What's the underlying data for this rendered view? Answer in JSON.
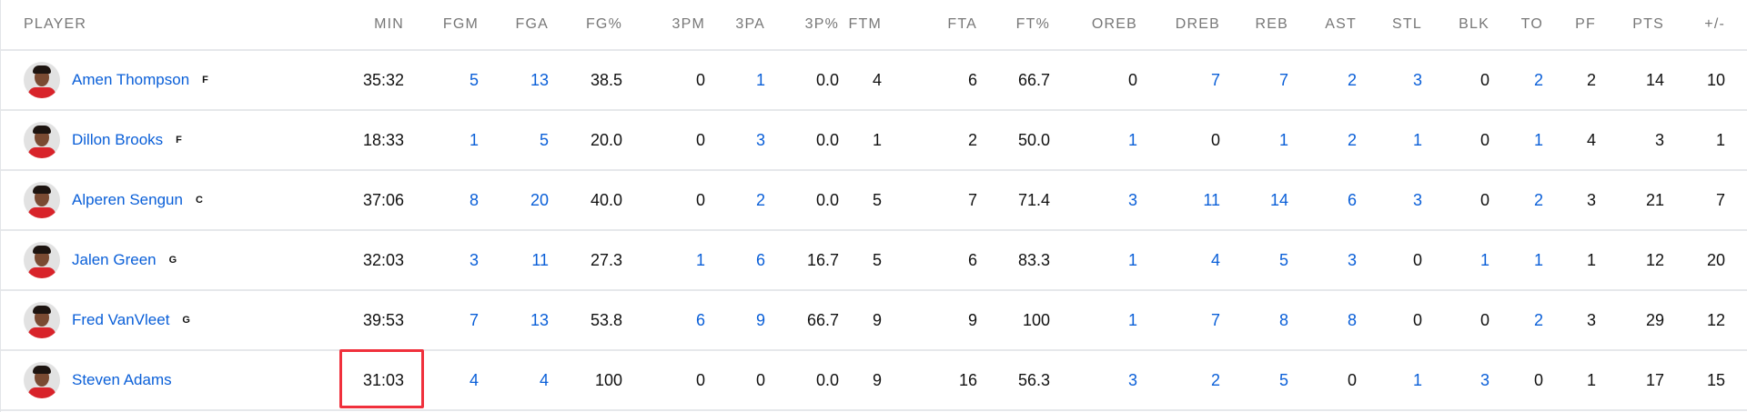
{
  "columns": [
    {
      "key": "player",
      "label": "PLAYER",
      "link": false
    },
    {
      "key": "min",
      "label": "MIN",
      "link": false
    },
    {
      "key": "fgm",
      "label": "FGM",
      "link": true
    },
    {
      "key": "fga",
      "label": "FGA",
      "link": true
    },
    {
      "key": "fgp",
      "label": "FG%",
      "link": false
    },
    {
      "key": "tpm",
      "label": "3PM",
      "link": true
    },
    {
      "key": "tpa",
      "label": "3PA",
      "link": true
    },
    {
      "key": "tpp",
      "label": "3P%",
      "link": false
    },
    {
      "key": "ftm",
      "label": "FTM",
      "link": false
    },
    {
      "key": "fta",
      "label": "FTA",
      "link": false
    },
    {
      "key": "ftp",
      "label": "FT%",
      "link": false
    },
    {
      "key": "oreb",
      "label": "OREB",
      "link": true
    },
    {
      "key": "dreb",
      "label": "DREB",
      "link": true
    },
    {
      "key": "reb",
      "label": "REB",
      "link": true
    },
    {
      "key": "ast",
      "label": "AST",
      "link": true
    },
    {
      "key": "stl",
      "label": "STL",
      "link": true
    },
    {
      "key": "blk",
      "label": "BLK",
      "link": true
    },
    {
      "key": "to",
      "label": "TO",
      "link": true
    },
    {
      "key": "pf",
      "label": "PF",
      "link": false
    },
    {
      "key": "pts",
      "label": "PTS",
      "link": false
    },
    {
      "key": "pm",
      "label": "+/-",
      "link": false
    }
  ],
  "players": [
    {
      "name": "Amen Thompson",
      "pos": "F",
      "stats": [
        "35:32",
        "5",
        "13",
        "38.5",
        "0",
        "1",
        "0.0",
        "4",
        "6",
        "66.7",
        "0",
        "7",
        "7",
        "2",
        "3",
        "0",
        "2",
        "2",
        "14",
        "10"
      ]
    },
    {
      "name": "Dillon Brooks",
      "pos": "F",
      "stats": [
        "18:33",
        "1",
        "5",
        "20.0",
        "0",
        "3",
        "0.0",
        "1",
        "2",
        "50.0",
        "1",
        "0",
        "1",
        "2",
        "1",
        "0",
        "1",
        "4",
        "3",
        "1"
      ]
    },
    {
      "name": "Alperen Sengun",
      "pos": "C",
      "stats": [
        "37:06",
        "8",
        "20",
        "40.0",
        "0",
        "2",
        "0.0",
        "5",
        "7",
        "71.4",
        "3",
        "11",
        "14",
        "6",
        "3",
        "0",
        "2",
        "3",
        "21",
        "7"
      ]
    },
    {
      "name": "Jalen Green",
      "pos": "G",
      "stats": [
        "32:03",
        "3",
        "11",
        "27.3",
        "1",
        "6",
        "16.7",
        "5",
        "6",
        "83.3",
        "1",
        "4",
        "5",
        "3",
        "0",
        "1",
        "1",
        "1",
        "12",
        "20"
      ]
    },
    {
      "name": "Fred VanVleet",
      "pos": "G",
      "stats": [
        "39:53",
        "7",
        "13",
        "53.8",
        "6",
        "9",
        "66.7",
        "9",
        "9",
        "100",
        "1",
        "7",
        "8",
        "8",
        "0",
        "0",
        "2",
        "3",
        "29",
        "12"
      ]
    },
    {
      "name": "Steven Adams",
      "pos": "",
      "stats": [
        "31:03",
        "4",
        "4",
        "100",
        "0",
        "0",
        "0.0",
        "9",
        "16",
        "56.3",
        "3",
        "2",
        "5",
        "0",
        "1",
        "3",
        "0",
        "1",
        "17",
        "15"
      ]
    }
  ],
  "highlight": {
    "player": "Steven Adams",
    "column": "MIN",
    "color": "#f0303c"
  },
  "colors": {
    "link": "#0a5fd8",
    "header": "#777777",
    "text": "#111111"
  }
}
